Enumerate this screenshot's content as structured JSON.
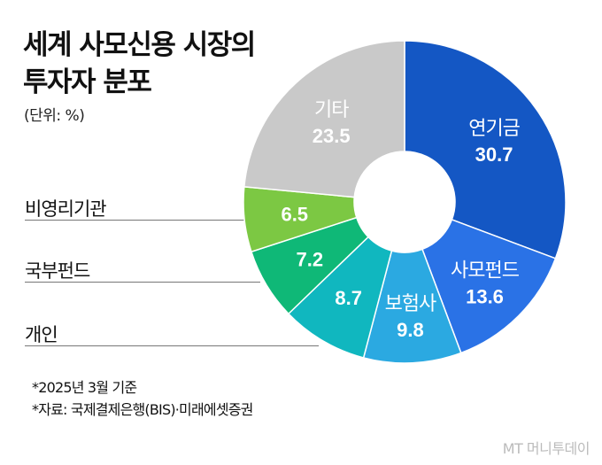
{
  "title_lines": [
    "세계 사모신용 시장의",
    "투자자 분포"
  ],
  "unit": "(단위: %)",
  "notes": [
    "*2025년 3월 기준",
    "*자료: 국제결제은행(BIS)·미래에셋증권"
  ],
  "logo": "MT 머니투데이",
  "chart_data": {
    "type": "pie",
    "donut": true,
    "title": "세계 사모신용 시장의 투자자 분포",
    "unit": "%",
    "start": "12 o'clock, clockwise",
    "slices": [
      {
        "label": "연기금",
        "value": 30.7,
        "color": "#1457c4",
        "label_inside": true
      },
      {
        "label": "사모펀드",
        "value": 13.6,
        "color": "#2a72e6",
        "label_inside": true
      },
      {
        "label": "보험사",
        "value": 9.8,
        "color": "#2ba9e1",
        "label_inside": true
      },
      {
        "label": "개인",
        "value": 8.7,
        "color": "#10b7bf",
        "label_inside": false
      },
      {
        "label": "국부펀드",
        "value": 7.2,
        "color": "#0fb877",
        "label_inside": false
      },
      {
        "label": "비영리기관",
        "value": 6.5,
        "color": "#7cc843",
        "label_inside": false
      },
      {
        "label": "기타",
        "value": 23.5,
        "color": "#c9c9c9",
        "label_inside": true
      }
    ]
  }
}
